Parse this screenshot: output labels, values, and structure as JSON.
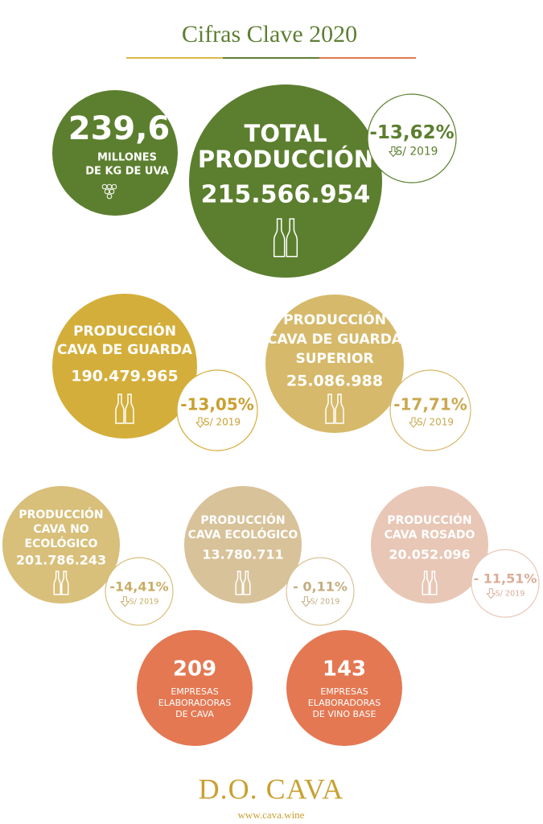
{
  "header": {
    "title": "Cifras Clave 2020"
  },
  "grape": {
    "value": "239,6",
    "lines": [
      "MILLONES",
      "DE KG DE UVA"
    ]
  },
  "total": {
    "lines": [
      "TOTAL",
      "PRODUCCIÓN"
    ],
    "value": "215.566.954",
    "change": "-13,62%",
    "compare": "S/ 2019"
  },
  "productions": [
    {
      "lines": [
        "PRODUCCIÓN",
        "CAVA DE GUARDA"
      ],
      "value": "190.479.965",
      "change": "-13,05%",
      "compare": "S/ 2019"
    },
    {
      "lines": [
        "PRODUCCIÓN",
        "CAVA DE GUARDA",
        "SUPERIOR"
      ],
      "value": "25.086.988",
      "change": "-17,71%",
      "compare": "S/ 2019"
    },
    {
      "lines": [
        "PRODUCCIÓN",
        "CAVA NO",
        "ECOLÓGICO"
      ],
      "value": "201.786.243",
      "change": "-14,41%",
      "compare": "S/ 2019"
    },
    {
      "lines": [
        "PRODUCCIÓN",
        "CAVA ECOLÓGICO"
      ],
      "value": "13.780.711",
      "change": "- 0,11%",
      "compare": "S/ 2019"
    },
    {
      "lines": [
        "PRODUCCIÓN",
        "CAVA ROSADO"
      ],
      "value": "20.052.096",
      "change": "- 11,51%",
      "compare": "S/ 2019"
    }
  ],
  "companies": [
    {
      "value": "209",
      "lines": [
        "EMPRESAS",
        "ELABORADORAS",
        "DE CAVA"
      ]
    },
    {
      "value": "143",
      "lines": [
        "EMPRESAS",
        "ELABORADORAS",
        "DE VINO BASE"
      ]
    }
  ],
  "footer": {
    "logo": "D.O. CAVA",
    "url": "www.cava.wine"
  }
}
